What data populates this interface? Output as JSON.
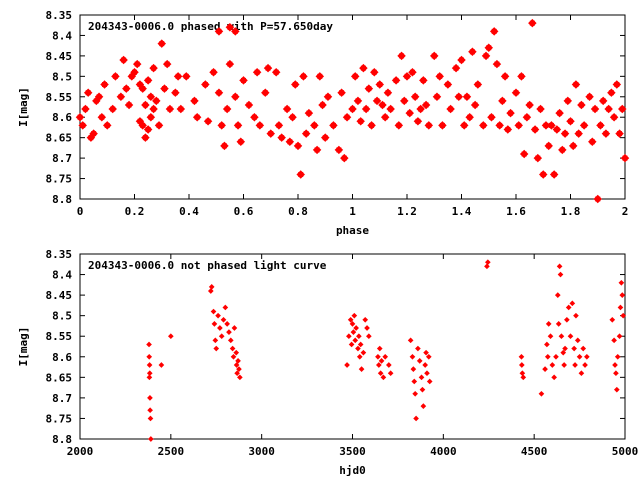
{
  "colors": {
    "points": "#ff0000",
    "axes": "#000000",
    "background": "#ffffff"
  },
  "chart_data": [
    {
      "type": "scatter",
      "title": "204343-0006.0 phased with P=57.650day",
      "xlabel": "phase",
      "ylabel": "I[mag]",
      "xlim": [
        0,
        2
      ],
      "ylim": [
        8.35,
        8.8
      ],
      "y_inverted": true,
      "grid": false,
      "legend": "none",
      "xticks": [
        "0",
        "0.2",
        "0.4",
        "0.6",
        "0.8",
        "1",
        "1.2",
        "1.4",
        "1.6",
        "1.8",
        "2"
      ],
      "yticks": [
        "8.35",
        "8.4",
        "8.45",
        "8.5",
        "8.55",
        "8.6",
        "8.65",
        "8.7",
        "8.75",
        "8.8"
      ],
      "points": [
        [
          0.0,
          8.6
        ],
        [
          0.01,
          8.62
        ],
        [
          0.02,
          8.58
        ],
        [
          0.03,
          8.54
        ],
        [
          0.04,
          8.65
        ],
        [
          0.05,
          8.64
        ],
        [
          0.06,
          8.56
        ],
        [
          0.07,
          8.55
        ],
        [
          0.08,
          8.6
        ],
        [
          0.09,
          8.52
        ],
        [
          0.1,
          8.62
        ],
        [
          0.12,
          8.58
        ],
        [
          0.13,
          8.5
        ],
        [
          0.15,
          8.55
        ],
        [
          0.16,
          8.46
        ],
        [
          0.17,
          8.53
        ],
        [
          0.18,
          8.57
        ],
        [
          0.19,
          8.5
        ],
        [
          0.2,
          8.49
        ],
        [
          0.21,
          8.47
        ],
        [
          0.22,
          8.61
        ],
        [
          0.22,
          8.52
        ],
        [
          0.23,
          8.62
        ],
        [
          0.23,
          8.53
        ],
        [
          0.24,
          8.65
        ],
        [
          0.24,
          8.57
        ],
        [
          0.25,
          8.51
        ],
        [
          0.25,
          8.63
        ],
        [
          0.26,
          8.55
        ],
        [
          0.26,
          8.6
        ],
        [
          0.27,
          8.48
        ],
        [
          0.27,
          8.58
        ],
        [
          0.28,
          8.56
        ],
        [
          0.29,
          8.62
        ],
        [
          0.3,
          8.42
        ],
        [
          0.31,
          8.53
        ],
        [
          0.32,
          8.47
        ],
        [
          0.33,
          8.58
        ],
        [
          0.35,
          8.54
        ],
        [
          0.36,
          8.5
        ],
        [
          0.37,
          8.58
        ],
        [
          0.39,
          8.5
        ],
        [
          0.42,
          8.56
        ],
        [
          0.43,
          8.6
        ],
        [
          0.46,
          8.52
        ],
        [
          0.47,
          8.61
        ],
        [
          0.49,
          8.49
        ],
        [
          0.51,
          8.39
        ],
        [
          0.51,
          8.54
        ],
        [
          0.52,
          8.62
        ],
        [
          0.53,
          8.67
        ],
        [
          0.54,
          8.58
        ],
        [
          0.55,
          8.38
        ],
        [
          0.55,
          8.47
        ],
        [
          0.57,
          8.39
        ],
        [
          0.57,
          8.55
        ],
        [
          0.58,
          8.62
        ],
        [
          0.59,
          8.66
        ],
        [
          0.6,
          8.51
        ],
        [
          0.62,
          8.57
        ],
        [
          0.64,
          8.6
        ],
        [
          0.65,
          8.49
        ],
        [
          0.66,
          8.62
        ],
        [
          0.68,
          8.54
        ],
        [
          0.69,
          8.48
        ],
        [
          0.7,
          8.64
        ],
        [
          0.72,
          8.49
        ],
        [
          0.73,
          8.62
        ],
        [
          0.74,
          8.65
        ],
        [
          0.76,
          8.58
        ],
        [
          0.77,
          8.66
        ],
        [
          0.78,
          8.6
        ],
        [
          0.79,
          8.52
        ],
        [
          0.8,
          8.67
        ],
        [
          0.81,
          8.74
        ],
        [
          0.82,
          8.5
        ],
        [
          0.83,
          8.64
        ],
        [
          0.84,
          8.59
        ],
        [
          0.86,
          8.62
        ],
        [
          0.87,
          8.68
        ],
        [
          0.88,
          8.5
        ],
        [
          0.89,
          8.57
        ],
        [
          0.9,
          8.65
        ],
        [
          0.91,
          8.55
        ],
        [
          0.93,
          8.62
        ],
        [
          0.95,
          8.68
        ],
        [
          0.96,
          8.54
        ],
        [
          0.97,
          8.7
        ],
        [
          0.98,
          8.6
        ],
        [
          1.0,
          8.58
        ],
        [
          1.01,
          8.5
        ],
        [
          1.02,
          8.56
        ],
        [
          1.03,
          8.61
        ],
        [
          1.04,
          8.48
        ],
        [
          1.05,
          8.58
        ],
        [
          1.06,
          8.53
        ],
        [
          1.07,
          8.62
        ],
        [
          1.08,
          8.49
        ],
        [
          1.09,
          8.56
        ],
        [
          1.1,
          8.52
        ],
        [
          1.11,
          8.57
        ],
        [
          1.12,
          8.6
        ],
        [
          1.13,
          8.54
        ],
        [
          1.14,
          8.58
        ],
        [
          1.16,
          8.51
        ],
        [
          1.17,
          8.62
        ],
        [
          1.18,
          8.45
        ],
        [
          1.19,
          8.56
        ],
        [
          1.2,
          8.5
        ],
        [
          1.21,
          8.59
        ],
        [
          1.22,
          8.49
        ],
        [
          1.23,
          8.55
        ],
        [
          1.24,
          8.61
        ],
        [
          1.25,
          8.58
        ],
        [
          1.26,
          8.51
        ],
        [
          1.27,
          8.57
        ],
        [
          1.28,
          8.62
        ],
        [
          1.3,
          8.45
        ],
        [
          1.31,
          8.55
        ],
        [
          1.32,
          8.5
        ],
        [
          1.33,
          8.62
        ],
        [
          1.35,
          8.52
        ],
        [
          1.36,
          8.58
        ],
        [
          1.38,
          8.48
        ],
        [
          1.39,
          8.55
        ],
        [
          1.4,
          8.46
        ],
        [
          1.41,
          8.62
        ],
        [
          1.42,
          8.55
        ],
        [
          1.43,
          8.6
        ],
        [
          1.44,
          8.44
        ],
        [
          1.45,
          8.57
        ],
        [
          1.46,
          8.52
        ],
        [
          1.48,
          8.62
        ],
        [
          1.49,
          8.45
        ],
        [
          1.5,
          8.43
        ],
        [
          1.51,
          8.6
        ],
        [
          1.52,
          8.39
        ],
        [
          1.53,
          8.47
        ],
        [
          1.54,
          8.62
        ],
        [
          1.55,
          8.56
        ],
        [
          1.56,
          8.5
        ],
        [
          1.57,
          8.63
        ],
        [
          1.58,
          8.59
        ],
        [
          1.6,
          8.54
        ],
        [
          1.61,
          8.62
        ],
        [
          1.62,
          8.5
        ],
        [
          1.63,
          8.69
        ],
        [
          1.64,
          8.6
        ],
        [
          1.65,
          8.57
        ],
        [
          1.66,
          8.37
        ],
        [
          1.67,
          8.63
        ],
        [
          1.68,
          8.7
        ],
        [
          1.69,
          8.58
        ],
        [
          1.7,
          8.74
        ],
        [
          1.71,
          8.62
        ],
        [
          1.72,
          8.67
        ],
        [
          1.73,
          8.62
        ],
        [
          1.74,
          8.74
        ],
        [
          1.75,
          8.63
        ],
        [
          1.76,
          8.59
        ],
        [
          1.77,
          8.68
        ],
        [
          1.78,
          8.64
        ],
        [
          1.79,
          8.56
        ],
        [
          1.8,
          8.61
        ],
        [
          1.81,
          8.67
        ],
        [
          1.82,
          8.52
        ],
        [
          1.83,
          8.64
        ],
        [
          1.84,
          8.57
        ],
        [
          1.85,
          8.62
        ],
        [
          1.87,
          8.55
        ],
        [
          1.88,
          8.66
        ],
        [
          1.89,
          8.58
        ],
        [
          1.9,
          8.8
        ],
        [
          1.91,
          8.62
        ],
        [
          1.92,
          8.56
        ],
        [
          1.93,
          8.64
        ],
        [
          1.94,
          8.58
        ],
        [
          1.95,
          8.54
        ],
        [
          1.96,
          8.6
        ],
        [
          1.97,
          8.52
        ],
        [
          1.98,
          8.64
        ],
        [
          1.99,
          8.58
        ],
        [
          2.0,
          8.7
        ]
      ]
    },
    {
      "type": "scatter",
      "title": "204343-0006.0 not phased light curve",
      "xlabel": "hjd0",
      "ylabel": "I[mag]",
      "xlim": [
        2000,
        5000
      ],
      "ylim": [
        8.35,
        8.8
      ],
      "y_inverted": true,
      "grid": false,
      "legend": "none",
      "xticks": [
        "2000",
        "2500",
        "3000",
        "3500",
        "4000",
        "4500",
        "5000"
      ],
      "yticks": [
        "8.35",
        "8.4",
        "8.45",
        "8.5",
        "8.55",
        "8.6",
        "8.65",
        "8.7",
        "8.75",
        "8.8"
      ],
      "points": [
        [
          2380,
          8.57
        ],
        [
          2381,
          8.6
        ],
        [
          2382,
          8.65
        ],
        [
          2383,
          8.62
        ],
        [
          2384,
          8.64
        ],
        [
          2385,
          8.7
        ],
        [
          2386,
          8.73
        ],
        [
          2388,
          8.75
        ],
        [
          2390,
          8.8
        ],
        [
          2448,
          8.62
        ],
        [
          2500,
          8.55
        ],
        [
          2720,
          8.44
        ],
        [
          2725,
          8.43
        ],
        [
          2735,
          8.49
        ],
        [
          2740,
          8.52
        ],
        [
          2745,
          8.56
        ],
        [
          2750,
          8.58
        ],
        [
          2760,
          8.5
        ],
        [
          2770,
          8.53
        ],
        [
          2780,
          8.55
        ],
        [
          2790,
          8.51
        ],
        [
          2800,
          8.48
        ],
        [
          2810,
          8.52
        ],
        [
          2820,
          8.54
        ],
        [
          2830,
          8.56
        ],
        [
          2840,
          8.58
        ],
        [
          2845,
          8.6
        ],
        [
          2850,
          8.53
        ],
        [
          2860,
          8.59
        ],
        [
          2862,
          8.62
        ],
        [
          2865,
          8.64
        ],
        [
          2870,
          8.61
        ],
        [
          2875,
          8.63
        ],
        [
          2880,
          8.65
        ],
        [
          3470,
          8.62
        ],
        [
          3480,
          8.55
        ],
        [
          3490,
          8.51
        ],
        [
          3495,
          8.57
        ],
        [
          3500,
          8.52
        ],
        [
          3505,
          8.54
        ],
        [
          3510,
          8.5
        ],
        [
          3515,
          8.56
        ],
        [
          3520,
          8.53
        ],
        [
          3530,
          8.58
        ],
        [
          3535,
          8.55
        ],
        [
          3540,
          8.6
        ],
        [
          3545,
          8.57
        ],
        [
          3550,
          8.63
        ],
        [
          3560,
          8.59
        ],
        [
          3570,
          8.51
        ],
        [
          3580,
          8.53
        ],
        [
          3590,
          8.55
        ],
        [
          3640,
          8.6
        ],
        [
          3645,
          8.62
        ],
        [
          3650,
          8.58
        ],
        [
          3655,
          8.64
        ],
        [
          3660,
          8.61
        ],
        [
          3670,
          8.65
        ],
        [
          3680,
          8.6
        ],
        [
          3700,
          8.62
        ],
        [
          3710,
          8.64
        ],
        [
          3820,
          8.56
        ],
        [
          3830,
          8.6
        ],
        [
          3835,
          8.63
        ],
        [
          3840,
          8.66
        ],
        [
          3845,
          8.69
        ],
        [
          3850,
          8.75
        ],
        [
          3860,
          8.58
        ],
        [
          3870,
          8.61
        ],
        [
          3880,
          8.65
        ],
        [
          3885,
          8.68
        ],
        [
          3890,
          8.72
        ],
        [
          3900,
          8.62
        ],
        [
          3905,
          8.59
        ],
        [
          3910,
          8.64
        ],
        [
          3920,
          8.6
        ],
        [
          3925,
          8.66
        ],
        [
          4240,
          8.38
        ],
        [
          4245,
          8.37
        ],
        [
          4430,
          8.6
        ],
        [
          4432,
          8.62
        ],
        [
          4435,
          8.64
        ],
        [
          4440,
          8.65
        ],
        [
          4540,
          8.69
        ],
        [
          4560,
          8.63
        ],
        [
          4570,
          8.57
        ],
        [
          4575,
          8.6
        ],
        [
          4580,
          8.52
        ],
        [
          4590,
          8.55
        ],
        [
          4600,
          8.62
        ],
        [
          4610,
          8.65
        ],
        [
          4620,
          8.6
        ],
        [
          4630,
          8.45
        ],
        [
          4635,
          8.52
        ],
        [
          4640,
          8.38
        ],
        [
          4645,
          8.4
        ],
        [
          4650,
          8.55
        ],
        [
          4660,
          8.59
        ],
        [
          4665,
          8.62
        ],
        [
          4670,
          8.58
        ],
        [
          4680,
          8.51
        ],
        [
          4690,
          8.48
        ],
        [
          4700,
          8.55
        ],
        [
          4710,
          8.47
        ],
        [
          4720,
          8.58
        ],
        [
          4725,
          8.62
        ],
        [
          4730,
          8.5
        ],
        [
          4740,
          8.56
        ],
        [
          4750,
          8.6
        ],
        [
          4760,
          8.64
        ],
        [
          4770,
          8.58
        ],
        [
          4780,
          8.62
        ],
        [
          4790,
          8.6
        ],
        [
          4930,
          8.51
        ],
        [
          4940,
          8.56
        ],
        [
          4945,
          8.62
        ],
        [
          4950,
          8.64
        ],
        [
          4955,
          8.68
        ],
        [
          4960,
          8.6
        ],
        [
          4970,
          8.55
        ],
        [
          4975,
          8.48
        ],
        [
          4980,
          8.42
        ],
        [
          4985,
          8.45
        ],
        [
          4990,
          8.5
        ]
      ]
    }
  ]
}
